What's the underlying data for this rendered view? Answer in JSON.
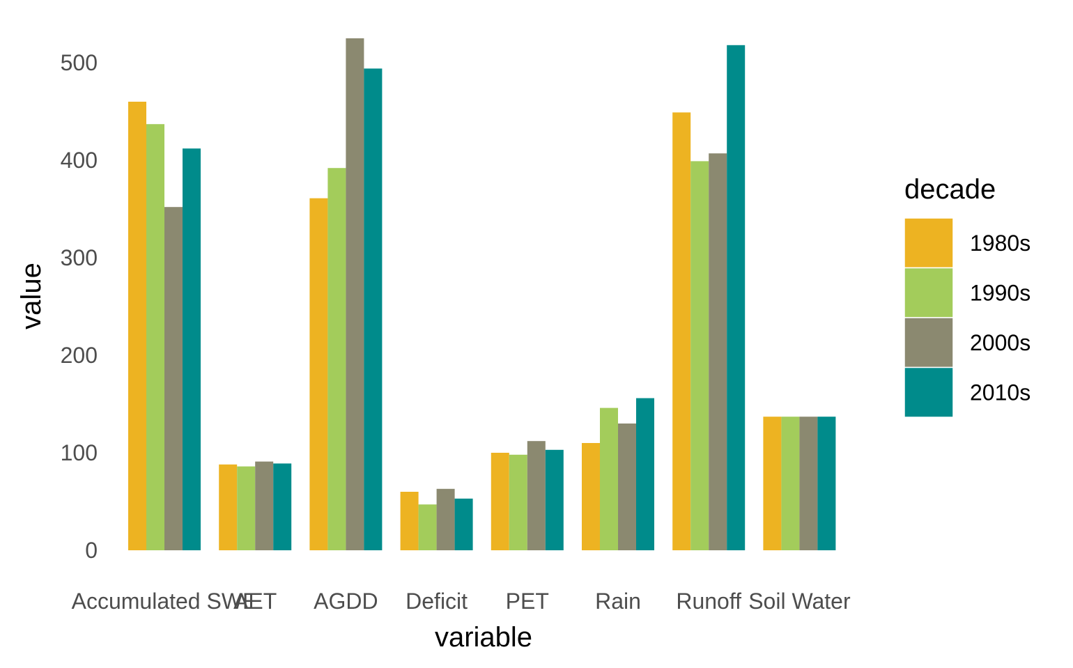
{
  "chart_data": {
    "type": "bar",
    "xlabel": "variable",
    "ylabel": "value",
    "ylim": [
      0,
      535
    ],
    "yticks": [
      0,
      100,
      200,
      300,
      400,
      500
    ],
    "grid": false,
    "legend_position": "right",
    "legend_title": "decade",
    "categories": [
      "Accumulated SWE",
      "AET",
      "AGDD",
      "Deficit",
      "PET",
      "Rain",
      "Runoff",
      "Soil Water"
    ],
    "series": [
      {
        "name": "1980s",
        "color": "#EDB322",
        "values": [
          460,
          88,
          361,
          60,
          100,
          110,
          449,
          137
        ]
      },
      {
        "name": "1990s",
        "color": "#A3CC5B",
        "values": [
          437,
          86,
          392,
          47,
          98,
          146,
          399,
          137
        ]
      },
      {
        "name": "2000s",
        "color": "#8B8970",
        "values": [
          352,
          91,
          525,
          63,
          112,
          130,
          407,
          137
        ]
      },
      {
        "name": "2010s",
        "color": "#008B8B",
        "values": [
          412,
          89,
          494,
          53,
          103,
          156,
          518,
          137
        ]
      }
    ]
  }
}
